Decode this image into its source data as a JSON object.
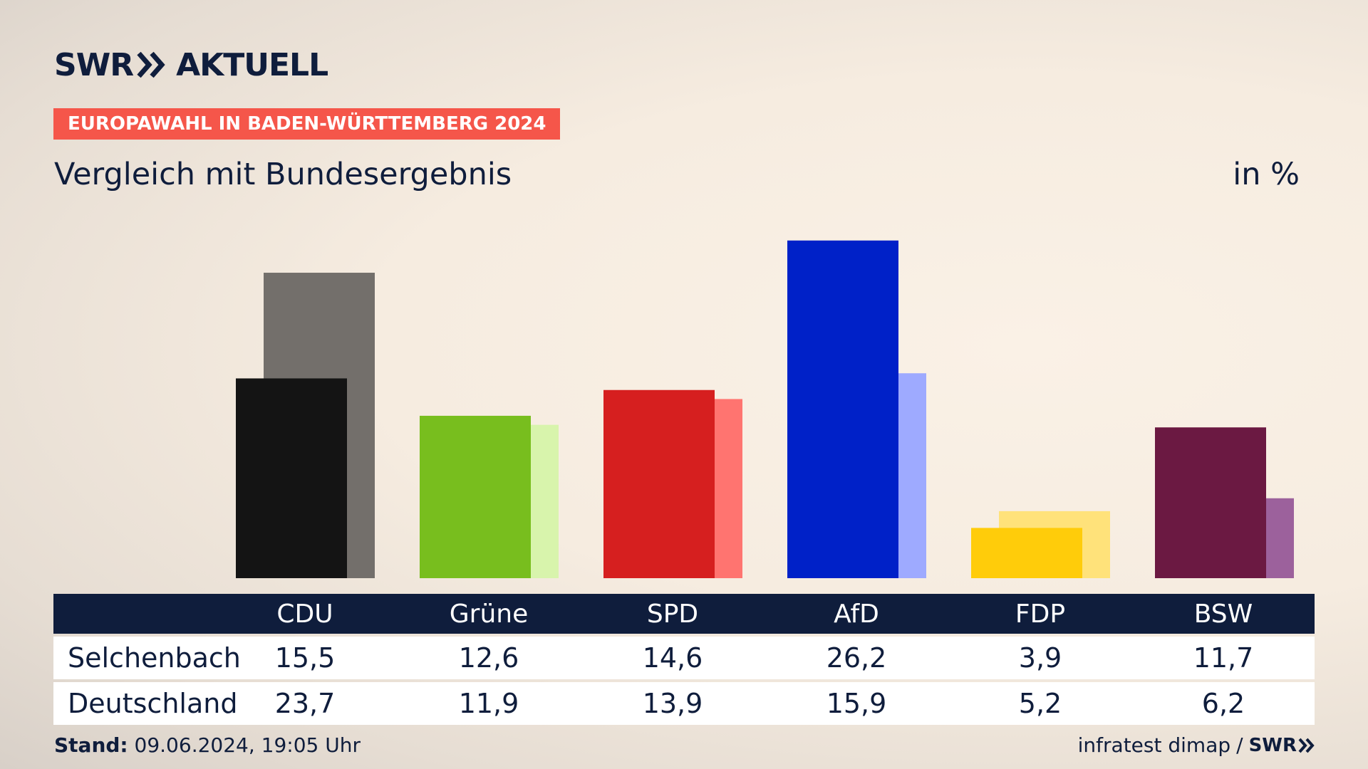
{
  "header": {
    "logo_left": "SWR",
    "logo_right": "AKTUELL",
    "badge": "EUROPAWAHL IN BADEN-WÜRTTEMBERG 2024",
    "subtitle": "Vergleich mit Bundesergebnis",
    "unit": "in %"
  },
  "colors": {
    "navy": "#0f1d3c",
    "badge": "#f5564a"
  },
  "chart_data": {
    "type": "bar",
    "categories": [
      "CDU",
      "Grüne",
      "SPD",
      "AfD",
      "FDP",
      "BSW"
    ],
    "series": [
      {
        "name": "Selchenbach",
        "values": [
          15.5,
          12.6,
          14.6,
          26.2,
          3.9,
          11.7
        ],
        "colors": [
          "#141414",
          "#78be1e",
          "#d61f1f",
          "#0021c8",
          "#ffcc0a",
          "#6b1942"
        ]
      },
      {
        "name": "Deutschland",
        "values": [
          23.7,
          11.9,
          13.9,
          15.9,
          5.2,
          6.2
        ],
        "colors": [
          "#736f6b",
          "#d8f4ac",
          "#ff7470",
          "#9eaaff",
          "#ffe27a",
          "#9c619c"
        ]
      }
    ],
    "ylim": [
      0,
      28
    ]
  },
  "table": {
    "headers": [
      "CDU",
      "Grüne",
      "SPD",
      "AfD",
      "FDP",
      "BSW"
    ],
    "rows": [
      {
        "label": "Selchenbach",
        "values": [
          "15,5",
          "12,6",
          "14,6",
          "26,2",
          "3,9",
          "11,7"
        ]
      },
      {
        "label": "Deutschland",
        "values": [
          "23,7",
          "11,9",
          "13,9",
          "15,9",
          "5,2",
          "6,2"
        ]
      }
    ]
  },
  "footer": {
    "stand_label": "Stand:",
    "stand_value": "09.06.2024, 19:05 Uhr",
    "source": "infratest dimap",
    "separator": "/",
    "source_logo": "SWR"
  }
}
